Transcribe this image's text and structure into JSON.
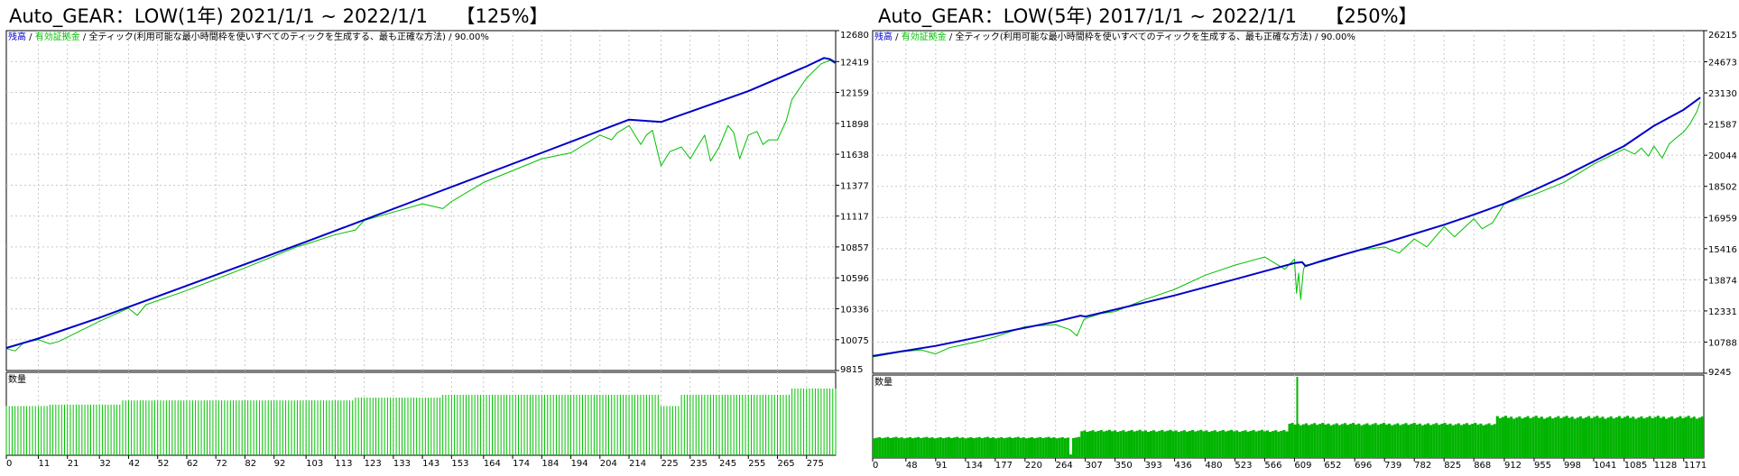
{
  "titles": {
    "left": "Auto_GEAR：LOW(1年) 2021/1/1 ~ 2022/1/1　　【125%】",
    "right": "Auto_GEAR：LOW(5年) 2017/1/1 ~ 2022/1/1　　【250%】"
  },
  "legend": {
    "balance": "残高",
    "sep1": " / ",
    "equity": "有効証拠金",
    "rest": " / 全ティック(利用可能な最小時間枠を使いすべてのティックを生成する、最も正確な方法) / 90.00%"
  },
  "volume_label": "数量",
  "colors": {
    "balance": "#0000c8",
    "equity": "#00c000",
    "volume": "#00b400",
    "grid": "#c8c8c8"
  },
  "chart_data": [
    {
      "type": "line",
      "title": "Auto_GEAR：LOW(1年) 2021/1/1 ~ 2022/1/1　　【125%】",
      "y_ticks": [
        12680,
        12419,
        12159,
        11898,
        11638,
        11377,
        11117,
        10857,
        10596,
        10336,
        10075,
        9815
      ],
      "ylim": [
        9815,
        12680
      ],
      "x_ticks": [
        0,
        11,
        21,
        32,
        42,
        52,
        62,
        72,
        82,
        92,
        103,
        113,
        123,
        133,
        143,
        153,
        164,
        174,
        184,
        194,
        204,
        214,
        225,
        235,
        245,
        255,
        265,
        275
      ],
      "xlim": [
        0,
        285
      ],
      "grid": true,
      "series": [
        {
          "name": "残高",
          "color": "#0000c8",
          "x": [
            0,
            11,
            32,
            62,
            103,
            143,
            184,
            214,
            225,
            255,
            275,
            281,
            283,
            285
          ],
          "y": [
            10005,
            10085,
            10260,
            10530,
            10900,
            11270,
            11650,
            11930,
            11910,
            12170,
            12380,
            12450,
            12440,
            12410
          ]
        },
        {
          "name": "有効証拠金",
          "color": "#00c000",
          "x": [
            0,
            3,
            6,
            11,
            15,
            18,
            32,
            42,
            45,
            48,
            62,
            82,
            100,
            103,
            113,
            120,
            123,
            133,
            143,
            150,
            153,
            164,
            184,
            194,
            200,
            204,
            208,
            210,
            214,
            218,
            220,
            222,
            225,
            228,
            232,
            235,
            238,
            240,
            242,
            245,
            248,
            250,
            252,
            255,
            258,
            260,
            262,
            265,
            268,
            270,
            275,
            280,
            283,
            285
          ],
          "y": [
            10000,
            9980,
            10050,
            10075,
            10040,
            10060,
            10230,
            10340,
            10280,
            10370,
            10490,
            10680,
            10860,
            10880,
            10960,
            11000,
            11080,
            11150,
            11220,
            11180,
            11240,
            11400,
            11600,
            11650,
            11740,
            11800,
            11760,
            11820,
            11880,
            11720,
            11800,
            11840,
            11540,
            11660,
            11700,
            11600,
            11720,
            11800,
            11580,
            11700,
            11880,
            11820,
            11600,
            11800,
            11830,
            11720,
            11760,
            11760,
            11920,
            12100,
            12280,
            12400,
            12430,
            12400
          ]
        }
      ],
      "volume": {
        "baseline": 0.7,
        "levels": [
          {
            "from": 0,
            "to": 15,
            "value": 0.7
          },
          {
            "from": 15,
            "to": 40,
            "value": 0.72
          },
          {
            "from": 40,
            "to": 120,
            "value": 0.78
          },
          {
            "from": 120,
            "to": 150,
            "value": 0.82
          },
          {
            "from": 150,
            "to": 225,
            "value": 0.86
          },
          {
            "from": 225,
            "to": 232,
            "value": 0.7
          },
          {
            "from": 232,
            "to": 270,
            "value": 0.86
          },
          {
            "from": 270,
            "to": 286,
            "value": 0.95
          }
        ]
      }
    },
    {
      "type": "line",
      "title": "Auto_GEAR：LOW(5年) 2017/1/1 ~ 2022/1/1　　【250%】",
      "y_ticks": [
        26215,
        24673,
        23130,
        21587,
        20044,
        18502,
        16959,
        15416,
        13874,
        12331,
        10788,
        9245
      ],
      "ylim": [
        9245,
        26215
      ],
      "x_ticks": [
        0,
        48,
        91,
        134,
        177,
        220,
        264,
        307,
        350,
        393,
        436,
        480,
        523,
        566,
        609,
        652,
        696,
        739,
        782,
        825,
        868,
        912,
        955,
        998,
        1041,
        1085,
        1128,
        1171
      ],
      "xlim": [
        0,
        1200
      ],
      "grid": true,
      "series": [
        {
          "name": "残高",
          "color": "#0000c8",
          "x": [
            0,
            91,
            177,
            264,
            300,
            307,
            350,
            436,
            523,
            566,
            609,
            620,
            625,
            652,
            739,
            825,
            868,
            912,
            998,
            1085,
            1128,
            1171,
            1195
          ],
          "y": [
            10100,
            10600,
            11200,
            11800,
            12100,
            12050,
            12400,
            13100,
            13900,
            14300,
            14700,
            14750,
            14550,
            14850,
            15700,
            16600,
            17100,
            17650,
            19000,
            20500,
            21500,
            22300,
            22900
          ]
        },
        {
          "name": "有効証拠金",
          "color": "#00c000",
          "x": [
            0,
            40,
            70,
            91,
            110,
            150,
            177,
            220,
            264,
            285,
            295,
            300,
            305,
            307,
            330,
            350,
            393,
            436,
            480,
            523,
            566,
            595,
            609,
            612,
            615,
            618,
            622,
            625,
            640,
            652,
            696,
            739,
            760,
            782,
            800,
            825,
            840,
            868,
            880,
            895,
            912,
            955,
            998,
            1041,
            1085,
            1100,
            1110,
            1120,
            1128,
            1140,
            1150,
            1160,
            1171,
            1180,
            1190,
            1195
          ],
          "y": [
            10050,
            10300,
            10400,
            10200,
            10500,
            10800,
            11050,
            11550,
            11650,
            11400,
            11100,
            11500,
            11900,
            11950,
            12200,
            12300,
            12900,
            13400,
            14100,
            14600,
            15000,
            14400,
            14900,
            13200,
            14200,
            12900,
            14400,
            14600,
            14700,
            14800,
            15300,
            15500,
            15200,
            15900,
            15500,
            16500,
            16000,
            16900,
            16400,
            16700,
            17650,
            18100,
            18700,
            19600,
            20350,
            20100,
            20400,
            20000,
            20500,
            19900,
            20600,
            20900,
            21200,
            21600,
            22200,
            22700
          ]
        }
      ],
      "volume": {
        "baseline": 0.3,
        "levels": [
          {
            "from": 0,
            "to": 300,
            "value": 0.3
          },
          {
            "from": 300,
            "to": 600,
            "value": 0.4
          },
          {
            "from": 600,
            "to": 900,
            "value": 0.5
          },
          {
            "from": 900,
            "to": 1195,
            "value": 0.6
          }
        ],
        "spike_x": 613,
        "spike_value": 1.0,
        "dip_x": 285,
        "dip_value": 0.05
      }
    }
  ]
}
